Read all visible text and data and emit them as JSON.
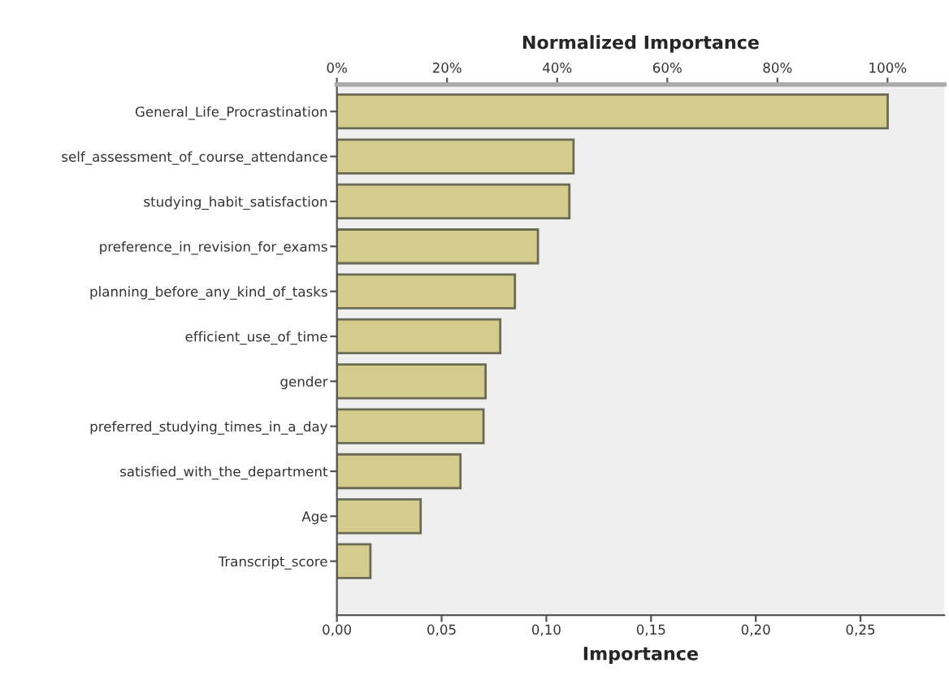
{
  "chart_data": {
    "type": "bar",
    "orientation": "horizontal",
    "title": "Normalized Importance",
    "xlabel": "Importance",
    "categories": [
      "General_Life_Procrastination",
      "self_assessment_of_course_attendance",
      "studying_habit_satisfaction",
      "preference_in_revision_for_exams",
      "planning_before_any_kind_of_tasks",
      "efficient_use_of_time",
      "gender",
      "preferred_studying_times_in_a_day",
      "satisfied_with_the_department",
      "Age",
      "Transcript_score"
    ],
    "values": [
      0.263,
      0.113,
      0.111,
      0.096,
      0.085,
      0.078,
      0.071,
      0.07,
      0.059,
      0.04,
      0.016
    ],
    "color": "#d4cc8c",
    "xlim": [
      0,
      0.29
    ],
    "xticks": [
      {
        "value": 0,
        "label": "0,00"
      },
      {
        "value": 0.05,
        "label": "0,05"
      },
      {
        "value": 0.1,
        "label": "0,10"
      },
      {
        "value": 0.15,
        "label": "0,15"
      },
      {
        "value": 0.2,
        "label": "0,20"
      },
      {
        "value": 0.25,
        "label": "0,25"
      }
    ],
    "x2lim": [
      0,
      110.3
    ],
    "x2ticks": [
      {
        "value": 0,
        "label": "0%"
      },
      {
        "value": 20,
        "label": "20%"
      },
      {
        "value": 40,
        "label": "40%"
      },
      {
        "value": 60,
        "label": "60%"
      },
      {
        "value": 80,
        "label": "80%"
      },
      {
        "value": 100,
        "label": "100%"
      }
    ],
    "grid": false,
    "legend": false
  }
}
